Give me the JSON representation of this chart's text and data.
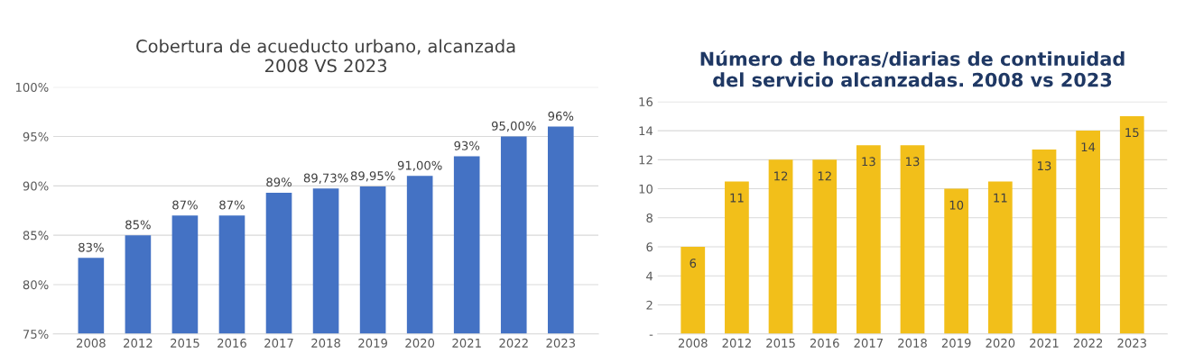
{
  "chart_data": [
    {
      "type": "bar",
      "title": "Cobertura de acueducto urbano, alcanzada\n2008 VS 2023",
      "categories": [
        "2008",
        "2012",
        "2015",
        "2016",
        "2017",
        "2018",
        "2019",
        "2020",
        "2021",
        "2022",
        "2023"
      ],
      "series": [
        {
          "color": "#4472c4",
          "values": [
            82.7,
            85,
            87,
            87,
            89.3,
            89.73,
            89.95,
            91.0,
            93,
            95,
            96
          ],
          "value_labels": [
            "83%",
            "85%",
            "87%",
            "87%",
            "89%",
            "89,73%",
            "89,95%",
            "91,00%",
            "93%",
            "95,00%",
            "96%"
          ]
        }
      ],
      "ylim": [
        75,
        100
      ],
      "yticks": [
        {
          "value": 75,
          "label": "75%"
        },
        {
          "value": 80,
          "label": "80%"
        },
        {
          "value": 85,
          "label": "85%"
        },
        {
          "value": 90,
          "label": "90%"
        },
        {
          "value": 95,
          "label": "95%"
        },
        {
          "value": 100,
          "label": "100%"
        }
      ],
      "grid": "y"
    },
    {
      "type": "bar",
      "title": "Número de horas/diarias de continuidad\ndel servicio alcanzadas. 2008 vs 2023",
      "categories": [
        "2008",
        "2012",
        "2015",
        "2016",
        "2017",
        "2018",
        "2019",
        "2020",
        "2021",
        "2022",
        "2023"
      ],
      "series": [
        {
          "color": "#f2bf1a",
          "values": [
            6,
            10.5,
            12,
            12,
            13,
            13,
            10,
            10.5,
            12.7,
            14,
            15
          ],
          "value_labels": [
            "6",
            "11",
            "12",
            "12",
            "13",
            "13",
            "10",
            "11",
            "13",
            "14",
            "15"
          ]
        }
      ],
      "ylim": [
        0,
        16
      ],
      "yticks": [
        {
          "value": 0,
          "label": "-"
        },
        2,
        4,
        6,
        8,
        10,
        12,
        14,
        16
      ],
      "grid": "y"
    }
  ]
}
